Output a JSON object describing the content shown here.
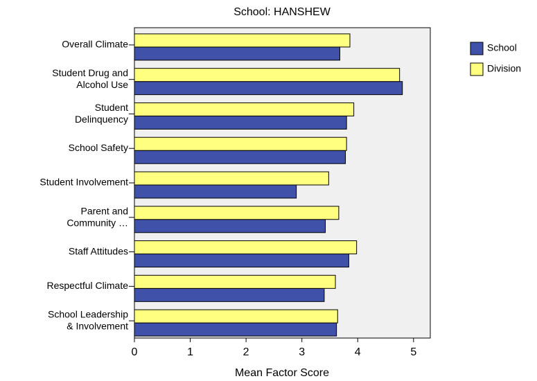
{
  "chart_data": {
    "type": "bar",
    "orientation": "horizontal",
    "title": "School: HANSHEW",
    "x_label": "Mean Factor Score",
    "categories": [
      "Overall Climate",
      "Student Drug and\nAlcohol Use",
      "Student\nDelinquency",
      "School Safety",
      "Student Involvement",
      "Parent and\nCommunity …",
      "Staff Attitudes",
      "Respectful Climate",
      "School Leadership\n& Involvement"
    ],
    "series": [
      {
        "name": "School",
        "color": "#3f51a8",
        "values": [
          3.68,
          4.8,
          3.8,
          3.78,
          2.9,
          3.42,
          3.84,
          3.4,
          3.62
        ]
      },
      {
        "name": "Division",
        "color": "#ffff80",
        "values": [
          3.86,
          4.75,
          3.93,
          3.8,
          3.48,
          3.66,
          3.98,
          3.6,
          3.64
        ]
      }
    ],
    "xlim": [
      0,
      5.3
    ],
    "xticks": [
      0,
      1,
      2,
      3,
      4,
      5
    ],
    "legend": "top-right"
  }
}
